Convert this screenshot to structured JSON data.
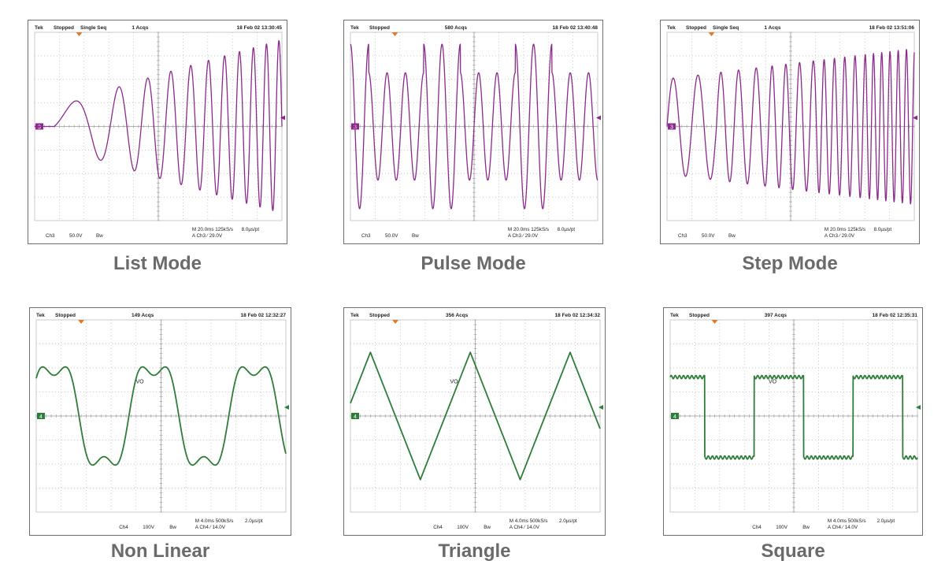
{
  "panels": [
    {
      "caption": "List Mode",
      "header": {
        "brand": "Tek",
        "status": "Stopped",
        "mode": "Single Seq",
        "acqs": "1 Acqs",
        "timestamp": "18 Feb 02 13:30:45"
      },
      "footer": {
        "channel": "Ch3",
        "volts_div": "50.0V",
        "bw": "Bw",
        "timebase": "M 20.0ms 125kS/s",
        "trigger": "A Ch3  ∕  29.0V",
        "resolution": "8.0µs/pt"
      },
      "marker": "3",
      "trace_label": "",
      "color": "#8b2a8c"
    },
    {
      "caption": "Pulse Mode",
      "header": {
        "brand": "Tek",
        "status": "Stopped",
        "mode": "",
        "acqs": "580 Acqs",
        "timestamp": "18 Feb 02 13:40:48"
      },
      "footer": {
        "channel": "Ch3",
        "volts_div": "50.0V",
        "bw": "Bw",
        "timebase": "M 20.0ms 125kS/s",
        "trigger": "A Ch3  ∕  29.0V",
        "resolution": "8.0µs/pt"
      },
      "marker": "3",
      "trace_label": "",
      "color": "#8b2a8c"
    },
    {
      "caption": "Step Mode",
      "header": {
        "brand": "Tek",
        "status": "Stopped",
        "mode": "Single Seq",
        "acqs": "1 Acqs",
        "timestamp": "18 Feb 02 13:51:06"
      },
      "footer": {
        "channel": "Ch3",
        "volts_div": "50.0V",
        "bw": "Bw",
        "timebase": "M 20.0ms 125kS/s",
        "trigger": "A Ch3  ∕  29.0V",
        "resolution": "8.0µs/pt"
      },
      "marker": "3",
      "trace_label": "",
      "color": "#8b2a8c"
    },
    {
      "caption": "Non Linear",
      "header": {
        "brand": "Tek",
        "status": "Stopped",
        "mode": "",
        "acqs": "149 Acqs",
        "timestamp": "18 Feb 02 12:32:27"
      },
      "footer": {
        "channel": "Ch4",
        "volts_div": "100V",
        "bw": "Bw",
        "timebase": "M 4.0ms 500kS/s",
        "trigger": "A Ch4  ∕  14.0V",
        "resolution": "2.0µs/pt"
      },
      "marker": "4",
      "trace_label": "VO",
      "color": "#2e7d3a"
    },
    {
      "caption": "Triangle",
      "header": {
        "brand": "Tek",
        "status": "Stopped",
        "mode": "",
        "acqs": "356 Acqs",
        "timestamp": "18 Feb 02 12:34:32"
      },
      "footer": {
        "channel": "Ch4",
        "volts_div": "100V",
        "bw": "Bw",
        "timebase": "M 4.0ms 500kS/s",
        "trigger": "A Ch4  ∕  14.0V",
        "resolution": "2.0µs/pt"
      },
      "marker": "4",
      "trace_label": "VO",
      "color": "#2e7d3a"
    },
    {
      "caption": "Square",
      "header": {
        "brand": "Tek",
        "status": "Stopped",
        "mode": "",
        "acqs": "397 Acqs",
        "timestamp": "18 Feb 02 12:35:31"
      },
      "footer": {
        "channel": "Ch4",
        "volts_div": "100V",
        "bw": "Bw",
        "timebase": "M 4.0ms 500kS/s",
        "trigger": "A Ch4  ∕  14.0V",
        "resolution": "2.0µs/pt"
      },
      "marker": "4",
      "trace_label": "VO",
      "color": "#2e7d3a"
    }
  ],
  "chart_data": [
    {
      "type": "line",
      "title": "List Mode",
      "waveform": "sine",
      "frequency_profile": "increasing",
      "amplitude_profile": "increasing",
      "divisions": {
        "x": 10,
        "y": 8
      }
    },
    {
      "type": "line",
      "title": "Pulse Mode",
      "waveform": "sine",
      "frequency_profile": "constant",
      "amplitude_profile": "periodic bursts",
      "divisions": {
        "x": 10,
        "y": 8
      }
    },
    {
      "type": "line",
      "title": "Step Mode",
      "waveform": "sine",
      "frequency_profile": "stepped increasing",
      "amplitude_profile": "increasing",
      "divisions": {
        "x": 10,
        "y": 8
      }
    },
    {
      "type": "line",
      "title": "Non Linear",
      "waveform": "sine with 3rd harmonic",
      "cycles": 2.5,
      "divisions": {
        "x": 10,
        "y": 8
      }
    },
    {
      "type": "line",
      "title": "Triangle",
      "waveform": "triangle",
      "cycles": 2.5,
      "divisions": {
        "x": 10,
        "y": 8
      }
    },
    {
      "type": "line",
      "title": "Square",
      "waveform": "square",
      "cycles": 2.5,
      "divisions": {
        "x": 10,
        "y": 8
      }
    }
  ]
}
